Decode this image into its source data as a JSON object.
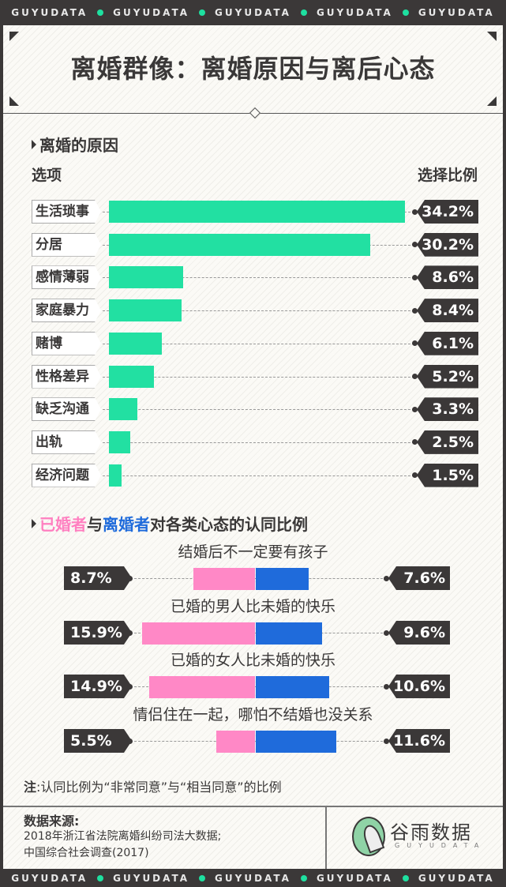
{
  "band_text": "GUYUDATA",
  "title": "离婚群像：离婚原因与离后心态",
  "section1": {
    "title": "离婚的原因",
    "col_left": "选项",
    "col_right": "选择比例"
  },
  "section2": {
    "title_pink": "已婚者",
    "title_mid": "与",
    "title_blue": "离婚者",
    "title_rest": "对各类心态的认同比例"
  },
  "note": {
    "bold": "注",
    "text": ":认同比例为“非常同意”与“相当同意”的比例"
  },
  "source": {
    "title": "数据来源:",
    "line1": "2018年浙江省法院离婚纠纷司法大数据;",
    "line2": "中国综合社会调查(2017)"
  },
  "logo": {
    "name": "谷雨数据",
    "sub": "GUYUDATA"
  },
  "colors": {
    "bar": "#22e0a2",
    "married": "#ff88c6",
    "divorced": "#1f6bdb",
    "dark": "#3b3838"
  },
  "chart_data": [
    {
      "type": "bar",
      "orientation": "horizontal",
      "title": "离婚的原因",
      "xlabel": "选项",
      "ylabel": "选择比例",
      "unit": "%",
      "categories": [
        "生活琐事",
        "分居",
        "感情薄弱",
        "家庭暴力",
        "赌博",
        "性格差异",
        "缺乏沟通",
        "出轨",
        "经济问题"
      ],
      "values": [
        34.2,
        30.2,
        8.6,
        8.4,
        6.1,
        5.2,
        3.3,
        2.5,
        1.5
      ],
      "labels": [
        "34.2%",
        "30.2%",
        "8.6%",
        "8.4%",
        "6.1%",
        "5.2%",
        "3.3%",
        "2.5%",
        "1.5%"
      ]
    },
    {
      "type": "bar",
      "orientation": "diverging",
      "title": "已婚者与离婚者对各类心态的认同比例",
      "unit": "%",
      "categories": [
        "结婚后不一定要有孩子",
        "已婚的男人比未婚的快乐",
        "已婚的女人比未婚的快乐",
        "情侣住在一起，哪怕不结婚也没关系"
      ],
      "series": [
        {
          "name": "已婚者",
          "values": [
            8.7,
            15.9,
            14.9,
            5.5
          ],
          "labels": [
            "8.7%",
            "15.9%",
            "14.9%",
            "5.5%"
          ]
        },
        {
          "name": "离婚者",
          "values": [
            7.6,
            9.6,
            10.6,
            11.6
          ],
          "labels": [
            "7.6%",
            "9.6%",
            "10.6%",
            "11.6%"
          ]
        }
      ]
    }
  ]
}
